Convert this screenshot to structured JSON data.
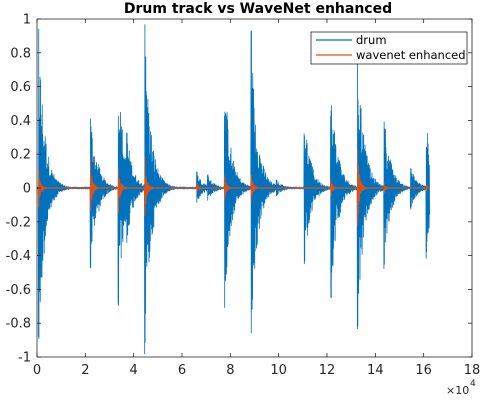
{
  "chart_data": {
    "type": "line",
    "title": "Drum track vs WaveNet enhanced",
    "xlabel": "",
    "ylabel": "",
    "xlim": [
      0,
      180000
    ],
    "ylim": [
      -1,
      1
    ],
    "x_ticks": [
      0,
      20000,
      40000,
      60000,
      80000,
      100000,
      120000,
      140000,
      160000,
      180000
    ],
    "x_tick_labels": [
      "0",
      "2",
      "4",
      "6",
      "8",
      "10",
      "12",
      "14",
      "16",
      "18"
    ],
    "x_exponent_label": "×10",
    "x_exponent_power": "4",
    "y_ticks": [
      -1,
      -0.8,
      -0.6,
      -0.4,
      -0.2,
      0,
      0.2,
      0.4,
      0.6,
      0.8,
      1
    ],
    "y_tick_labels": [
      "-1",
      "-0.8",
      "-0.6",
      "-0.4",
      "-0.2",
      "0",
      "0.2",
      "0.4",
      "0.6",
      "0.8",
      "1"
    ],
    "grid": false,
    "legend_position": "top-right",
    "series": [
      {
        "name": "drum",
        "color": "#0072bd",
        "onsets": [
          {
            "x": 600,
            "pos": 0.98,
            "neg": -0.92
          },
          {
            "x": 22000,
            "pos": 0.46,
            "neg": -0.48
          },
          {
            "x": 25500,
            "pos": 0.14,
            "neg": -0.14
          },
          {
            "x": 33500,
            "pos": 0.46,
            "neg": -0.72
          },
          {
            "x": 37000,
            "pos": 0.35,
            "neg": -0.35
          },
          {
            "x": 44500,
            "pos": 1.0,
            "neg": -1.0
          },
          {
            "x": 66000,
            "pos": 0.1,
            "neg": -0.1
          },
          {
            "x": 70500,
            "pos": 0.08,
            "neg": -0.08
          },
          {
            "x": 77500,
            "pos": 0.46,
            "neg": -0.72
          },
          {
            "x": 81000,
            "pos": 0.12,
            "neg": -0.12
          },
          {
            "x": 88500,
            "pos": 0.94,
            "neg": -0.97
          },
          {
            "x": 99000,
            "pos": 0.05,
            "neg": -0.05
          },
          {
            "x": 110500,
            "pos": 0.35,
            "neg": -0.48
          },
          {
            "x": 114000,
            "pos": 0.08,
            "neg": -0.08
          },
          {
            "x": 121500,
            "pos": 0.47,
            "neg": -0.67
          },
          {
            "x": 125000,
            "pos": 0.18,
            "neg": -0.18
          },
          {
            "x": 132500,
            "pos": 0.94,
            "neg": -0.85
          },
          {
            "x": 136000,
            "pos": 0.22,
            "neg": -0.22
          },
          {
            "x": 143500,
            "pos": 0.46,
            "neg": -0.48
          },
          {
            "x": 147000,
            "pos": 0.12,
            "neg": -0.12
          },
          {
            "x": 154500,
            "pos": 0.13,
            "neg": -0.13
          },
          {
            "x": 161000,
            "pos": 0.28,
            "neg": -0.42
          }
        ]
      },
      {
        "name": "wavenet enhanced",
        "color": "#d95319",
        "onsets": [
          {
            "x": 600,
            "pos": 0.12,
            "neg": -0.12
          },
          {
            "x": 22000,
            "pos": 0.18,
            "neg": -0.14
          },
          {
            "x": 33500,
            "pos": 0.14,
            "neg": -0.16
          },
          {
            "x": 44500,
            "pos": 0.18,
            "neg": -0.18
          },
          {
            "x": 66000,
            "pos": 0.03,
            "neg": -0.03
          },
          {
            "x": 77500,
            "pos": 0.08,
            "neg": -0.08
          },
          {
            "x": 88500,
            "pos": 0.08,
            "neg": -0.09
          },
          {
            "x": 121500,
            "pos": 0.05,
            "neg": -0.05
          },
          {
            "x": 132500,
            "pos": 0.25,
            "neg": -0.23
          },
          {
            "x": 143500,
            "pos": 0.03,
            "neg": -0.03
          },
          {
            "x": 161000,
            "pos": 0.02,
            "neg": -0.02
          }
        ]
      }
    ]
  }
}
